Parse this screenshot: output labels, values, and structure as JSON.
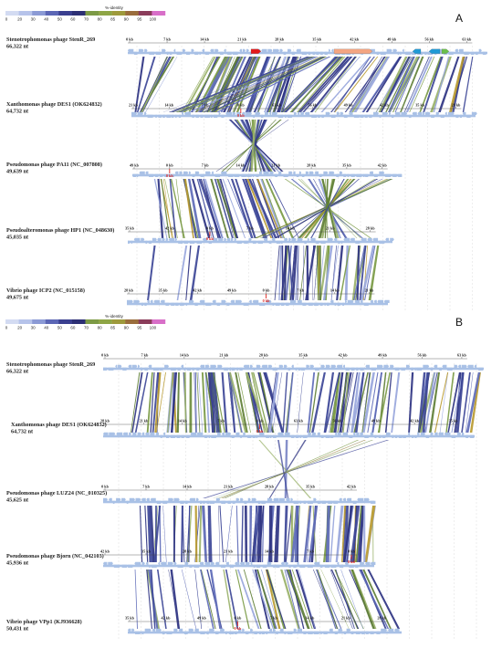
{
  "legend_title": "%-identity",
  "legend_ticks": [
    "0",
    "20",
    "30",
    "40",
    "50",
    "60",
    "70",
    "80",
    "85",
    "90",
    "95",
    "100"
  ],
  "legend_colors": [
    "#d3dbf2",
    "#b6c3ea",
    "#8b9ad5",
    "#5b66b5",
    "#3a3f8f",
    "#2c2f74",
    "#7c9a45",
    "#8ea545",
    "#9e9a3c",
    "#9a6d3c",
    "#8a3c5a",
    "#d86fc8"
  ],
  "gene_color": "#a9c1e6",
  "link_palette": [
    "#2e3382",
    "#3d4697",
    "#5e6bb8",
    "#98a6dc",
    "#5f7f36",
    "#7a9a44",
    "#9ab26a",
    "#b89a30"
  ],
  "panels": [
    {
      "letter": "A",
      "genomes": [
        {
          "name": "Stenotrophomonas phage StenR_269",
          "size": "66,322 nt",
          "ticks": [
            "0 kb",
            "7 kb",
            "14 kb",
            "21 kb",
            "28 kb",
            "35 kb",
            "42 kb",
            "49 kb",
            "56 kb",
            "63 kb"
          ],
          "zero_index": -1
        },
        {
          "name": "Xanthomonas phage DES1 (OK624832)",
          "size": "64,732 nt",
          "ticks": [
            "21 kb",
            "14 kb",
            "7 kb",
            "0 kb",
            "63 kb",
            "56 kb",
            "49 kb",
            "42 kb",
            "35 kb",
            "28 kb"
          ],
          "zero_index": 3
        },
        {
          "name": "Pseudomonas phage PA11 (NC_007808)",
          "size": "49,639 nt",
          "ticks": [
            "49 kb",
            "0 kb",
            "7 kb",
            "14 kb",
            "21 kb",
            "28 kb",
            "35 kb",
            "42 kb"
          ],
          "zero_index": 1
        },
        {
          "name": "Pseudoalteromonas phage HP1 (NC_048630)",
          "size": "45,035 nt",
          "ticks": [
            "35 kb",
            "42 kb",
            "0 kb",
            "7 kb",
            "14 kb",
            "21 kb",
            "28 kb"
          ],
          "zero_index": 2
        },
        {
          "name": "Vibrio phage ICP2 (NC_015158)",
          "size": "49,675 nt",
          "ticks": [
            "28 kb",
            "35 kb",
            "42 kb",
            "49 kb",
            "0 kb",
            "7 kb",
            "14 kb",
            "21 kb"
          ],
          "zero_index": 4
        }
      ]
    },
    {
      "letter": "B",
      "genomes": [
        {
          "name": "Stenotrophomonas phage StenR_269",
          "size": "66,322 nt",
          "ticks": [
            "0 kb",
            "7 kb",
            "14 kb",
            "21 kb",
            "28 kb",
            "35 kb",
            "42 kb",
            "49 kb",
            "56 kb",
            "63 kb"
          ],
          "zero_index": -1
        },
        {
          "name": "Xanthomonas phage DES1 (OK624832)",
          "size": "64,732 nt",
          "ticks": [
            "28 kb",
            "21 kb",
            "14 kb",
            "7 kb",
            "0 kb",
            "63 kb",
            "56 kb",
            "49 kb",
            "42 kb",
            "35 kb"
          ],
          "zero_index": 4
        },
        {
          "name": "Pseudomonas phage LUZ24 (NC_010325)",
          "size": "45,625 nt",
          "ticks": [
            "0 kb",
            "7 kb",
            "14 kb",
            "21 kb",
            "28 kb",
            "35 kb",
            "42 kb"
          ],
          "zero_index": -1
        },
        {
          "name": "Pseudomonas phage Bjorn (NC_042103)",
          "size": "45,936 nt",
          "ticks": [
            "42 kb",
            "35 kb",
            "28 kb",
            "21 kb",
            "14 kb",
            "7 kb",
            "0 kb"
          ],
          "zero_index": 6
        },
        {
          "name": "Vibrio phage VPp1 (KJ936628)",
          "size": "50,431 nt",
          "ticks": [
            "35 kb",
            "42 kb",
            "49 kb",
            "0 kb",
            "7 kb",
            "14 kb",
            "21 kb",
            "28 kb"
          ],
          "zero_index": 3
        }
      ]
    }
  ]
}
